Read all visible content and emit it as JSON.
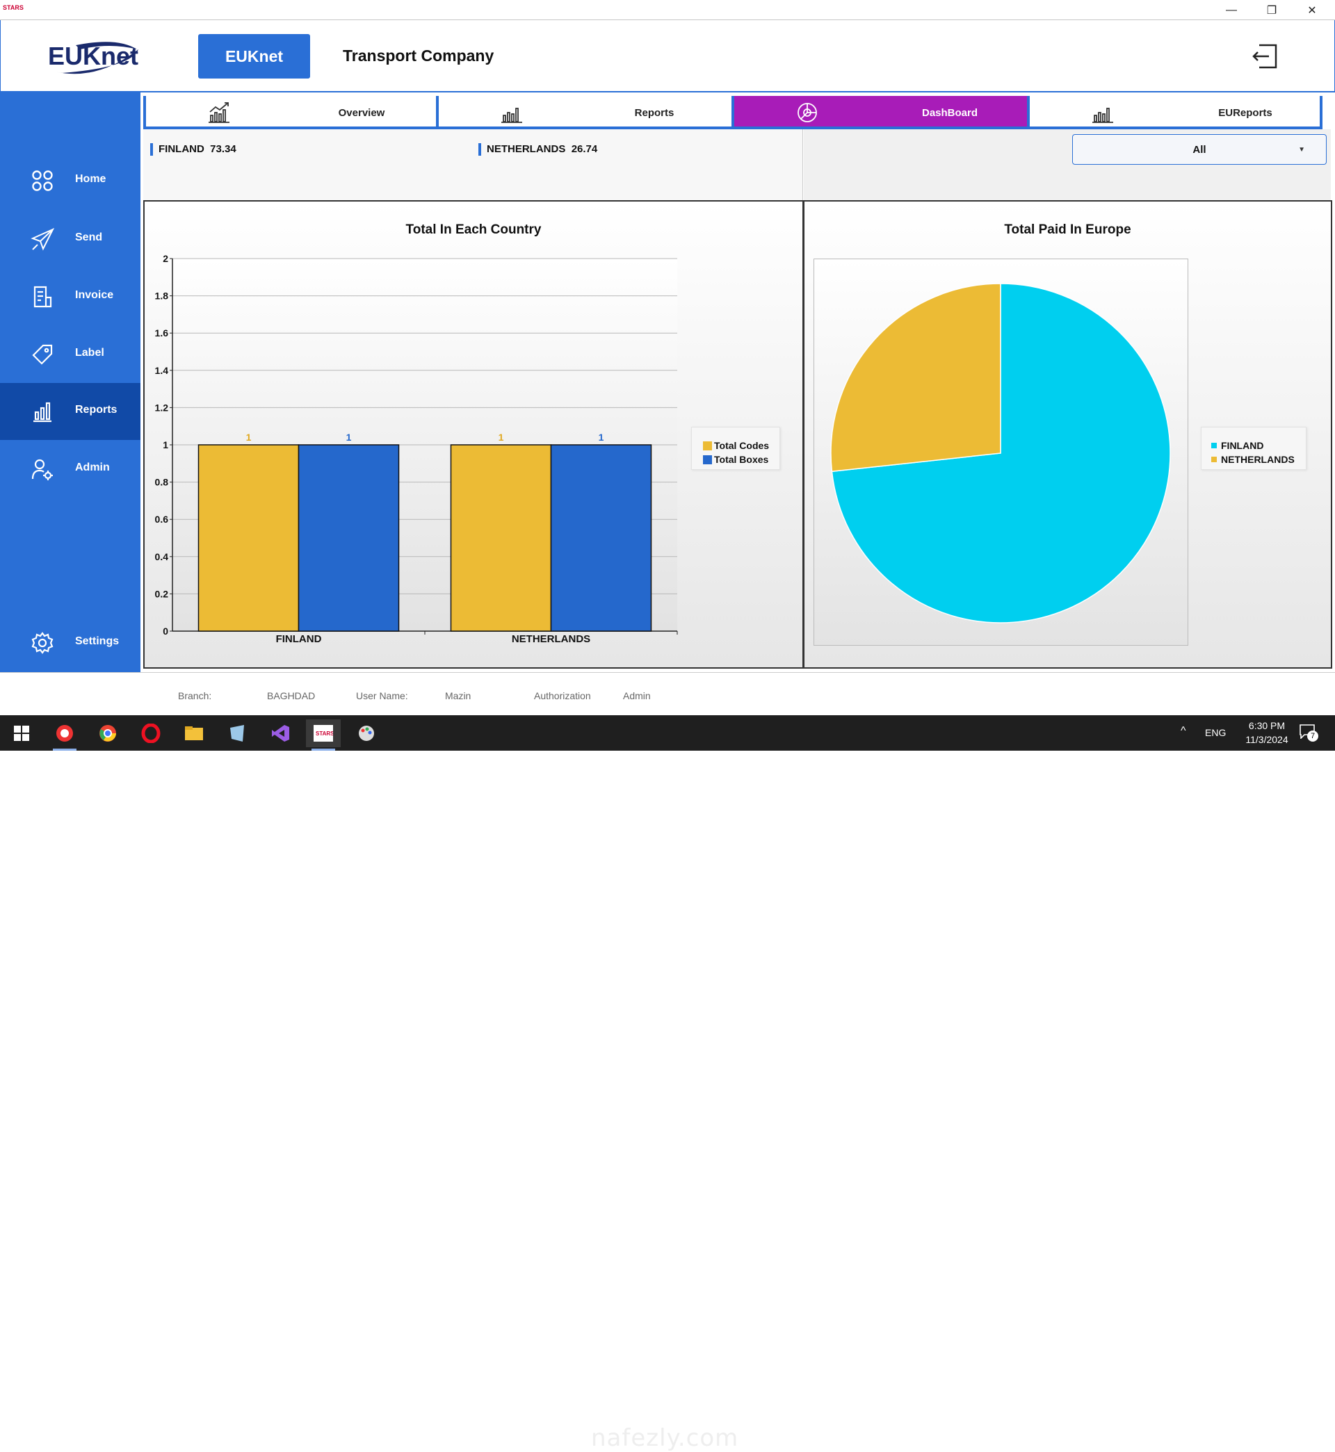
{
  "window": {
    "app_icon_text": "STARS",
    "minimize": "—",
    "maximize": "❐",
    "close": "✕"
  },
  "header": {
    "logo_text": "EUKnet",
    "brand_button": "EUKnet",
    "company": "Transport Company"
  },
  "sidebar": {
    "items": [
      {
        "label": "Home",
        "icon": "grid-icon",
        "active": false
      },
      {
        "label": "Send",
        "icon": "paper-plane-icon",
        "active": false
      },
      {
        "label": "Invoice",
        "icon": "document-icon",
        "active": false
      },
      {
        "label": "Label",
        "icon": "tag-icon",
        "active": false
      },
      {
        "label": "Reports",
        "icon": "bar-chart-icon",
        "active": true
      },
      {
        "label": "Admin",
        "icon": "user-gear-icon",
        "active": false
      }
    ],
    "settings": {
      "label": "Settings",
      "icon": "gear-icon"
    }
  },
  "tabs": [
    {
      "label": "Overview",
      "icon": "trend-chart-icon",
      "active": false
    },
    {
      "label": "Reports",
      "icon": "bar-chart-icon",
      "active": false
    },
    {
      "label": "DashBoard",
      "icon": "pie-chart-icon",
      "active": true
    },
    {
      "label": "EUReports",
      "icon": "bar-chart-icon",
      "active": false
    }
  ],
  "summary": [
    {
      "country": "FINLAND",
      "value": "73.34"
    },
    {
      "country": "NETHERLANDS",
      "value": "26.74"
    }
  ],
  "filter": {
    "selected": "All"
  },
  "colors": {
    "accent": "#2a6fd6",
    "active_tab": "#a81cb8",
    "codes": "#ecbb35",
    "boxes": "#2568cc",
    "finland": "#00cfef",
    "netherlands": "#ecbb35"
  },
  "chart_data": [
    {
      "type": "bar",
      "title": "Total In Each Country",
      "categories": [
        "FINLAND",
        "NETHERLANDS"
      ],
      "series": [
        {
          "name": "Total Codes",
          "values": [
            1,
            1
          ]
        },
        {
          "name": "Total Boxes",
          "values": [
            1,
            1
          ]
        }
      ],
      "ylim": [
        0,
        2
      ],
      "yticks": [
        "0",
        "0.2",
        "0.4",
        "0.6",
        "0.8",
        "1",
        "1.2",
        "1.4",
        "1.6",
        "1.8",
        "2"
      ],
      "grid": true,
      "legend": "right"
    },
    {
      "type": "pie",
      "title": "Total Paid In Europe",
      "labels": [
        "FINLAND",
        "NETHERLANDS"
      ],
      "values": [
        73.34,
        26.74
      ],
      "legend": "right"
    }
  ],
  "statusbar": {
    "branch_label": "Branch:",
    "branch_value": "BAGHDAD",
    "user_label": "User Name:",
    "user_value": "Mazin",
    "auth_label": "Authorization",
    "auth_value": "Admin"
  },
  "taskbar": {
    "lang": "ENG",
    "time": "6:30 PM",
    "date": "11/3/2024",
    "notifications": "7",
    "tray_arrow": "^"
  },
  "watermark": "nafezly.com"
}
